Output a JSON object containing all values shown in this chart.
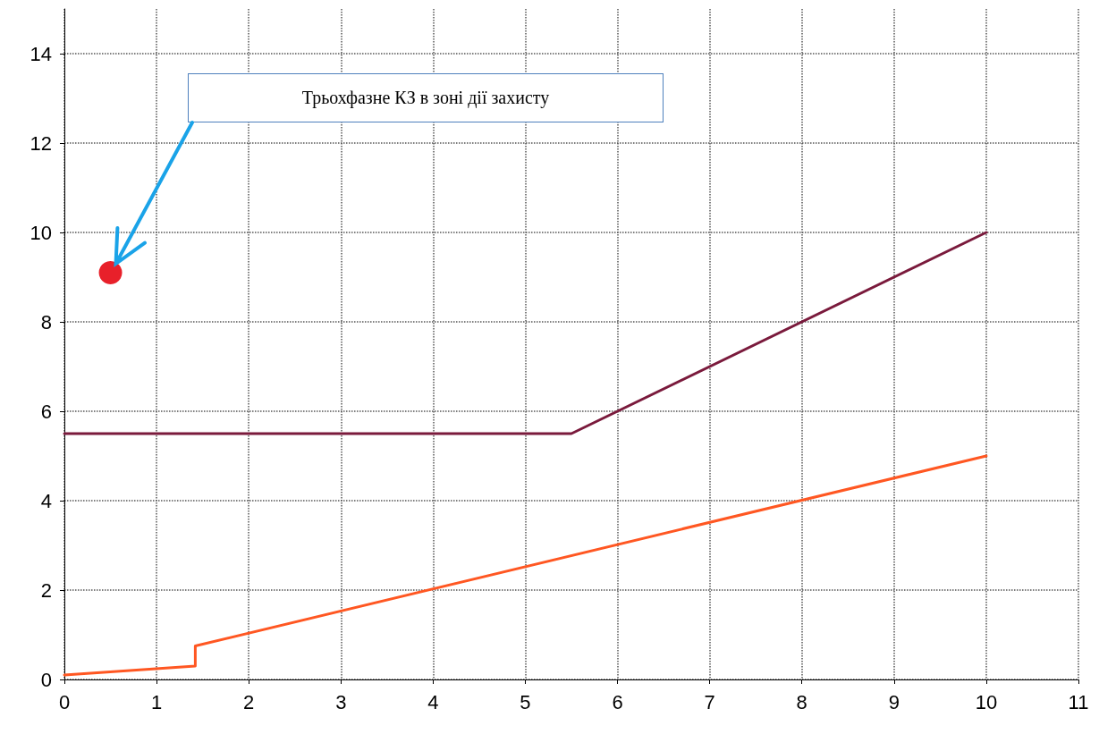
{
  "chart_data": {
    "type": "line",
    "xlim": [
      0,
      11
    ],
    "xticks": [
      0,
      1,
      2,
      3,
      4,
      5,
      6,
      7,
      8,
      9,
      10,
      11
    ],
    "ylim": [
      0,
      15
    ],
    "yticks": [
      0,
      2,
      4,
      6,
      8,
      10,
      12,
      14
    ],
    "grid": true,
    "marker": "none",
    "line_style": "solid",
    "series": [
      {
        "color": "#7a1a3c",
        "x": [
          0,
          5.5,
          10
        ],
        "values": [
          5.5,
          5.5,
          10
        ]
      },
      {
        "color": "#ff5722",
        "x": [
          0,
          1.42,
          1.42,
          10
        ],
        "values": [
          0.1,
          0.3,
          0.75,
          5
        ]
      },
      {
        "type": "scatter",
        "marker": "circle",
        "color": "#e8202a",
        "x": [
          0.5
        ],
        "values": [
          9.1
        ]
      }
    ],
    "annotations": [
      "Трьохфазне КЗ в зоні дії захисту"
    ]
  }
}
